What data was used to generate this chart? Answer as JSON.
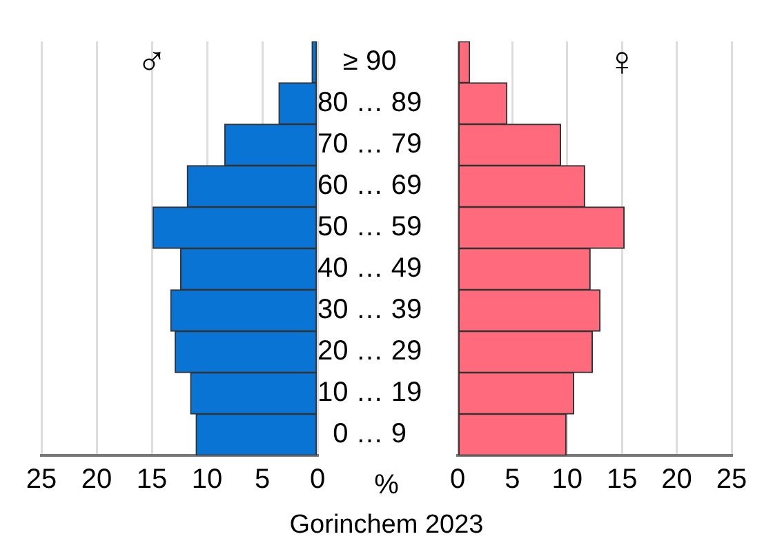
{
  "chart_data": [
    {
      "type": "bar",
      "orientation": "horizontal",
      "title": "Gorinchem 2023",
      "xlabel": "%",
      "categories": [
        "≥ 90",
        "80 … 89",
        "70 … 79",
        "60 … 69",
        "50 … 59",
        "40 … 49",
        "30 … 39",
        "20 … 29",
        "10 … 19",
        "0 … 9"
      ],
      "series": [
        {
          "name": "♂",
          "color": "#0a74d4",
          "values": [
            0.5,
            3.5,
            8.4,
            11.8,
            14.9,
            12.4,
            13.3,
            12.9,
            11.5,
            11.0
          ]
        }
      ],
      "xlim": [
        25,
        0
      ],
      "xticks": [
        25,
        20,
        15,
        10,
        5,
        0
      ],
      "grid": "x",
      "legend": false
    },
    {
      "type": "bar",
      "orientation": "horizontal",
      "categories": [
        null,
        null,
        null,
        null,
        null,
        null,
        null,
        null,
        null,
        null
      ],
      "series": [
        {
          "name": "♀",
          "color": "#ff6a7c",
          "values": [
            1.1,
            4.5,
            9.4,
            11.6,
            15.2,
            12.1,
            13.0,
            12.3,
            10.6,
            9.9
          ]
        }
      ],
      "xlim": [
        0,
        25
      ],
      "xticks": [
        0,
        5,
        10,
        15,
        20,
        25
      ],
      "grid": "x",
      "legend": false,
      "tick_labels": "x"
    }
  ]
}
